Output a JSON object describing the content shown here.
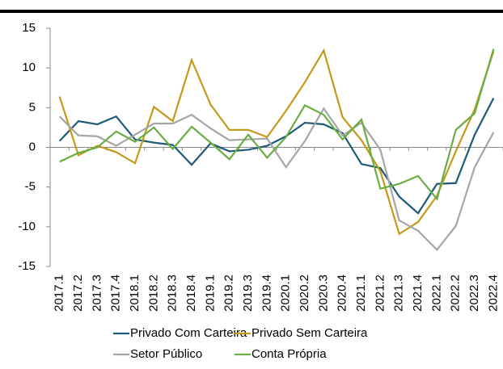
{
  "chart_data": {
    "type": "line",
    "categories": [
      "2017.1",
      "2017.2",
      "2017.3",
      "2017.4",
      "2018.1",
      "2018.2",
      "2018.3",
      "2018.4",
      "2019.1",
      "2019.2",
      "2019.3",
      "2019.4",
      "2020.1",
      "2020.2",
      "2020.3",
      "2020.4",
      "2021.1",
      "2021.2",
      "2021.3",
      "2021.4",
      "2022.1",
      "2022.2",
      "2022.3",
      "2022.4"
    ],
    "series": [
      {
        "name": "Privado Com Carteira",
        "color": "#1d5a78",
        "values": [
          0.8,
          3.3,
          2.9,
          3.9,
          1.0,
          0.6,
          0.3,
          -2.2,
          0.5,
          -0.5,
          -0.3,
          0.2,
          1.4,
          3.1,
          2.9,
          1.8,
          -2.1,
          -2.6,
          -6.2,
          -8.3,
          -4.6,
          -4.5,
          1.6,
          6.2
        ]
      },
      {
        "name": "Privado Sem Carteira",
        "color": "#c49a1a",
        "values": [
          6.4,
          -1.0,
          0.2,
          -0.6,
          -2.0,
          5.1,
          3.3,
          11.0,
          5.4,
          2.2,
          2.2,
          1.3,
          4.6,
          8.2,
          12.2,
          3.8,
          0.9,
          -3.0,
          -10.9,
          -9.4,
          -6.1,
          -0.5,
          4.8,
          12.1
        ]
      },
      {
        "name": "Setor Público",
        "color": "#a6a6a6",
        "values": [
          3.9,
          1.5,
          1.4,
          0.2,
          1.6,
          3.0,
          3.0,
          4.1,
          2.4,
          0.9,
          1.0,
          1.1,
          -2.5,
          0.8,
          4.9,
          1.5,
          3.1,
          -0.3,
          -9.2,
          -10.5,
          -12.9,
          -9.9,
          -2.5,
          1.9
        ]
      },
      {
        "name": "Conta Própria",
        "color": "#6aad43",
        "values": [
          -1.8,
          -0.7,
          0.0,
          2.0,
          0.7,
          2.5,
          -0.2,
          2.6,
          0.6,
          -1.5,
          1.6,
          -1.3,
          1.3,
          5.3,
          4.1,
          1.0,
          3.5,
          -5.2,
          -4.6,
          -3.6,
          -6.5,
          2.2,
          4.3,
          12.4
        ]
      }
    ],
    "ylim": [
      -15,
      15
    ],
    "yticks": [
      -15,
      -10,
      -5,
      0,
      5,
      10,
      15
    ],
    "grid": false
  }
}
